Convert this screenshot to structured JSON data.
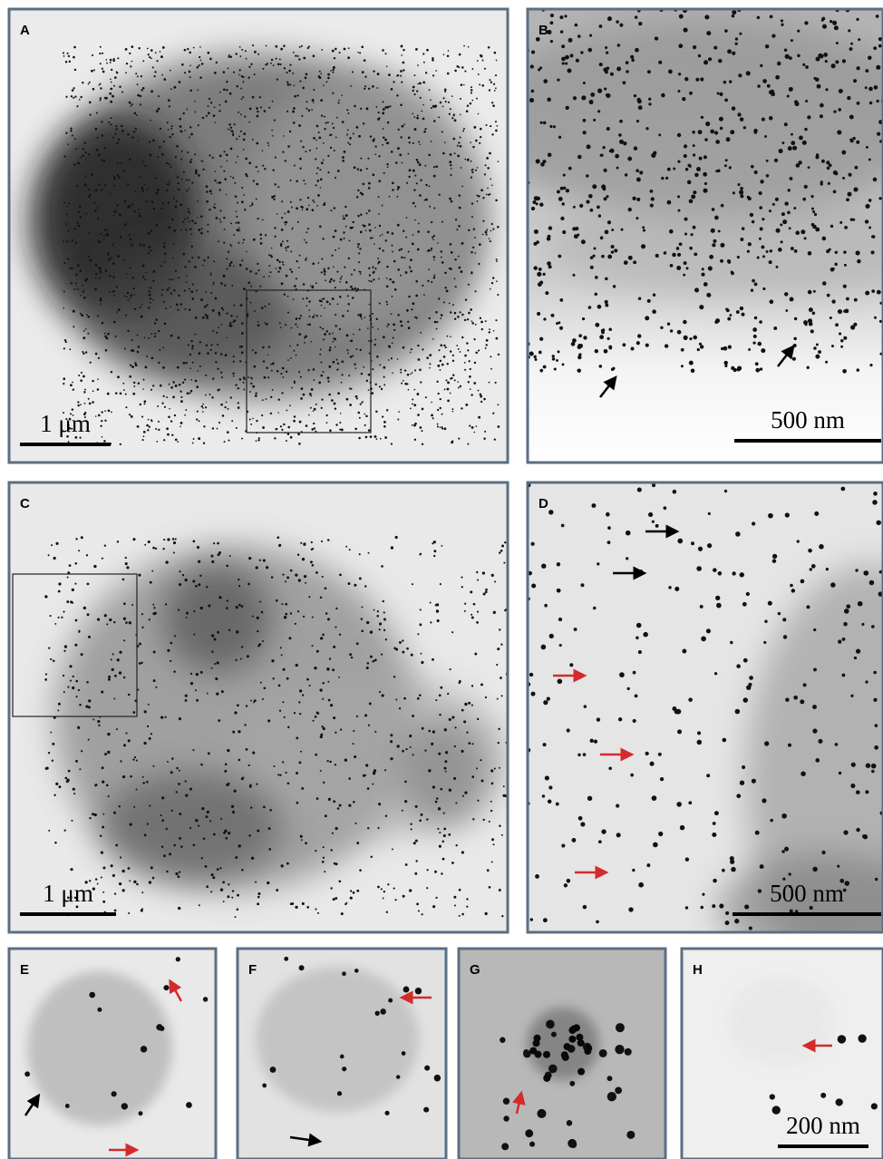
{
  "panels": [
    {
      "label": "A",
      "scale_bar": "1 μm"
    },
    {
      "label": "B",
      "scale_bar": "500 nm"
    },
    {
      "label": "C",
      "scale_bar": "1 μm"
    },
    {
      "label": "D",
      "scale_bar": "500 nm"
    },
    {
      "label": "E"
    },
    {
      "label": "F"
    },
    {
      "label": "G"
    },
    {
      "label": "H",
      "scale_bar": "200 nm"
    }
  ]
}
